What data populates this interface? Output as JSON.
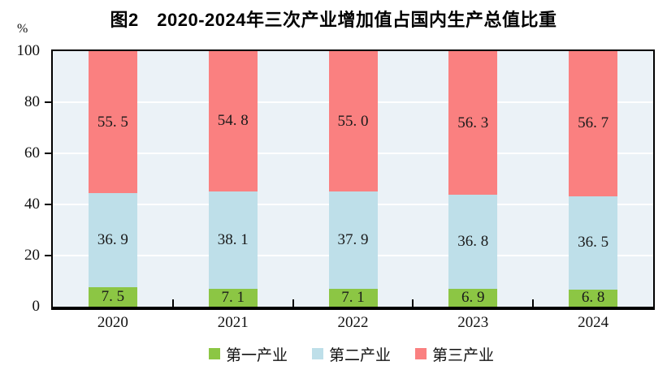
{
  "title": "图2　2020-2024年三次产业增加值占国内生产总值比重",
  "y_axis_unit": "%",
  "chart_data": {
    "type": "bar",
    "stacked": true,
    "title": "图2　2020-2024年三次产业增加值占国内生产总值比重",
    "categories": [
      "2020",
      "2021",
      "2022",
      "2023",
      "2024"
    ],
    "series": [
      {
        "name": "第一产业",
        "color": "#8cc644",
        "values": [
          7.5,
          7.1,
          7.1,
          6.9,
          6.8
        ]
      },
      {
        "name": "第二产业",
        "color": "#bedfe9",
        "values": [
          36.9,
          38.1,
          37.9,
          36.8,
          36.5
        ]
      },
      {
        "name": "第三产业",
        "color": "#fa8080",
        "values": [
          55.5,
          54.8,
          55.0,
          56.3,
          56.7
        ]
      }
    ],
    "xlabel": "",
    "ylabel": "%",
    "ylim": [
      0,
      100
    ],
    "yticks": [
      0,
      20,
      40,
      60,
      80,
      100
    ],
    "grid": true,
    "gridline_color": "#ffffff",
    "plot_background": "#ebf2f7",
    "axis_color": "#000000",
    "legend_position": "bottom"
  }
}
